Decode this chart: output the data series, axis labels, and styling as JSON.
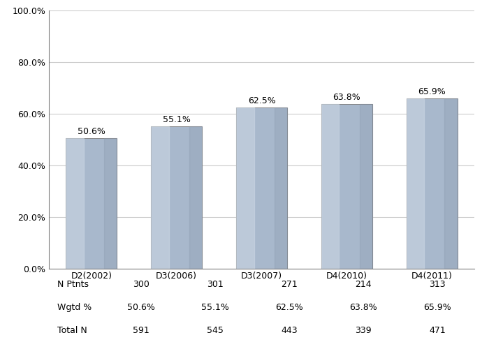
{
  "categories": [
    "D2(2002)",
    "D3(2006)",
    "D3(2007)",
    "D4(2010)",
    "D4(2011)"
  ],
  "values": [
    50.6,
    55.1,
    62.5,
    63.8,
    65.9
  ],
  "bar_color_main": "#a8b8cc",
  "bar_color_light": "#d0dae6",
  "bar_color_dark": "#8898ac",
  "ylim": [
    0,
    100
  ],
  "yticks": [
    0,
    20,
    40,
    60,
    80,
    100
  ],
  "ytick_labels": [
    "0.0%",
    "20.0%",
    "40.0%",
    "60.0%",
    "80.0%",
    "100.0%"
  ],
  "value_labels": [
    "50.6%",
    "55.1%",
    "62.5%",
    "63.8%",
    "65.9%"
  ],
  "table_rows": {
    "N Ptnts": [
      "300",
      "301",
      "271",
      "214",
      "313"
    ],
    "Wgtd %": [
      "50.6%",
      "55.1%",
      "62.5%",
      "63.8%",
      "65.9%"
    ],
    "Total N": [
      "591",
      "545",
      "443",
      "339",
      "471"
    ]
  },
  "table_row_order": [
    "N Ptnts",
    "Wgtd %",
    "Total N"
  ],
  "grid_color": "#cccccc",
  "border_color": "#808080",
  "bg_color": "#ffffff",
  "label_fontsize": 9,
  "tick_fontsize": 9,
  "value_label_fontsize": 9,
  "table_fontsize": 9,
  "bar_width": 0.6
}
